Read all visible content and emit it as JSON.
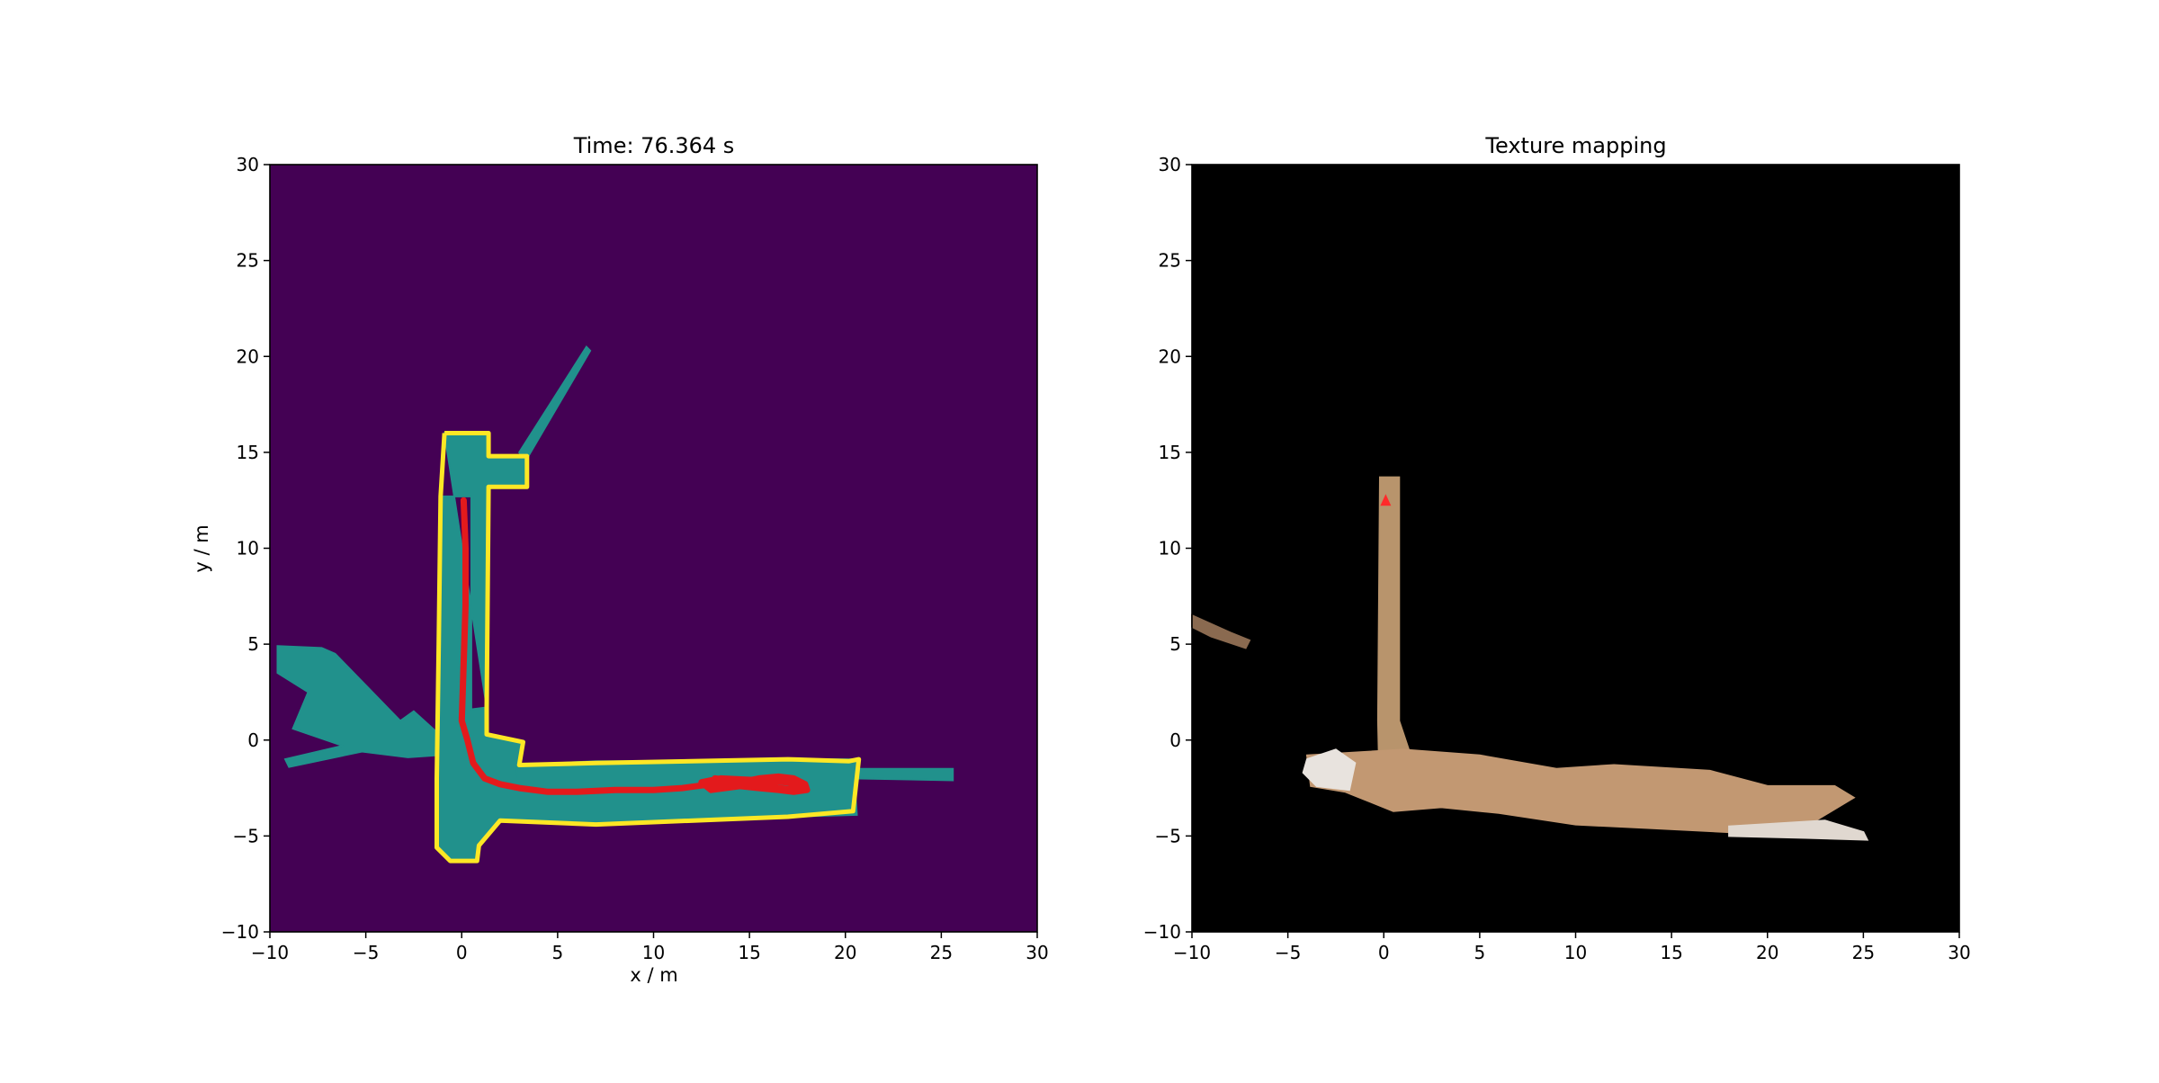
{
  "chart_data": [
    {
      "type": "heatmap",
      "title": "Time: 76.364 s",
      "xlabel": "x / m",
      "ylabel": "y / m",
      "xlim": [
        -10,
        30
      ],
      "ylim": [
        -10,
        30
      ],
      "x_ticks": [
        -10,
        -5,
        0,
        5,
        10,
        15,
        20,
        25,
        30
      ],
      "y_ticks": [
        -10,
        -5,
        0,
        5,
        10,
        15,
        20,
        25,
        30
      ],
      "grid": false,
      "colors": {
        "unknown": "#440154",
        "free": "#21918c",
        "occupied": "#fde725",
        "trajectory": "#e31a1c"
      },
      "free_regions": [
        {
          "name": "vertical-corridor",
          "points": [
            [
              -0.9,
              16.0
            ],
            [
              1.4,
              16.0
            ],
            [
              1.4,
              14.8
            ],
            [
              3.4,
              14.8
            ],
            [
              3.4,
              13.2
            ],
            [
              1.4,
              13.2
            ],
            [
              1.3,
              1.7
            ],
            [
              0.5,
              1.6
            ],
            [
              0.5,
              12.7
            ],
            [
              -1.1,
              12.7
            ],
            [
              -1.2,
              5.0
            ],
            [
              -1.3,
              -2.0
            ],
            [
              -1.3,
              -5.6
            ],
            [
              -0.6,
              -6.3
            ],
            [
              0.8,
              -6.3
            ],
            [
              0.9,
              -5.5
            ],
            [
              2.0,
              -4.2
            ],
            [
              7.0,
              -4.4
            ],
            [
              17.0,
              -4.0
            ],
            [
              20.4,
              -3.7
            ],
            [
              20.7,
              -1.0
            ],
            [
              20.2,
              -1.1
            ],
            [
              17.0,
              -1.0
            ],
            [
              7.0,
              -1.2
            ],
            [
              3.0,
              -1.3
            ],
            [
              3.2,
              -0.1
            ],
            [
              1.3,
              0.3
            ],
            [
              1.3,
              1.7
            ]
          ]
        },
        {
          "name": "horizontal-corridor",
          "points": [
            [
              2.9,
              -1.3
            ],
            [
              7.0,
              -1.1
            ],
            [
              13.0,
              -1.1
            ],
            [
              17.0,
              -1.0
            ],
            [
              20.4,
              -1.0
            ],
            [
              20.6,
              -3.9
            ],
            [
              17.0,
              -4.0
            ],
            [
              7.0,
              -4.3
            ],
            [
              2.8,
              -4.2
            ],
            [
              2.8,
              -2.0
            ]
          ]
        },
        {
          "name": "left-fan",
          "points": [
            [
              -9.6,
              4.9
            ],
            [
              -7.3,
              4.8
            ],
            [
              -6.6,
              4.5
            ],
            [
              -3.2,
              1.0
            ],
            [
              -2.5,
              1.5
            ],
            [
              -1.4,
              0.5
            ],
            [
              -1.4,
              -0.8
            ],
            [
              -2.8,
              -0.9
            ],
            [
              -5.2,
              -0.6
            ],
            [
              -9.0,
              -1.4
            ],
            [
              -9.2,
              -1.0
            ],
            [
              -6.2,
              -0.3
            ],
            [
              -8.8,
              0.6
            ],
            [
              -8.0,
              2.5
            ],
            [
              -9.6,
              3.5
            ]
          ]
        },
        {
          "name": "right-ray",
          "points": [
            [
              20.5,
              -1.5
            ],
            [
              25.6,
              -1.5
            ],
            [
              25.6,
              -2.1
            ],
            [
              20.5,
              -2.0
            ]
          ]
        },
        {
          "name": "upper-ray",
          "points": [
            [
              3.0,
              15.0
            ],
            [
              6.5,
              20.5
            ],
            [
              6.7,
              20.3
            ],
            [
              3.3,
              14.5
            ]
          ]
        }
      ],
      "occupied_boundary": [
        [
          -0.9,
          16.0
        ],
        [
          1.4,
          16.0
        ],
        [
          1.4,
          14.8
        ],
        [
          3.4,
          14.8
        ],
        [
          3.4,
          13.2
        ],
        [
          1.4,
          13.2
        ],
        [
          1.3,
          1.7
        ],
        [
          1.3,
          0.3
        ],
        [
          3.2,
          -0.1
        ],
        [
          3.0,
          -1.3
        ],
        [
          7.0,
          -1.2
        ],
        [
          17.0,
          -1.0
        ],
        [
          20.2,
          -1.1
        ],
        [
          20.7,
          -1.0
        ],
        [
          20.4,
          -3.7
        ],
        [
          17.0,
          -4.0
        ],
        [
          7.0,
          -4.4
        ],
        [
          2.0,
          -4.2
        ],
        [
          0.9,
          -5.5
        ],
        [
          0.8,
          -6.3
        ],
        [
          -0.6,
          -6.3
        ],
        [
          -1.3,
          -5.6
        ],
        [
          -1.3,
          -2.0
        ],
        [
          -1.2,
          5.0
        ],
        [
          -1.1,
          12.7
        ],
        [
          -0.9,
          16.0
        ]
      ],
      "trajectory": {
        "x": [
          0.1,
          0.2,
          0.2,
          0.1,
          0.0,
          0.3,
          0.6,
          1.2,
          2.0,
          3.0,
          4.5,
          6.0,
          8.0,
          10.0,
          11.5,
          13.0,
          14.5,
          15.5,
          16.5,
          17.3,
          17.9,
          18.0,
          17.3,
          16.5,
          15.5,
          14.5,
          13.0,
          12.5,
          13.5,
          15.5,
          17.0,
          17.8,
          17.6,
          16.5,
          15.0,
          14.0,
          13.2
        ],
        "y": [
          12.5,
          10.0,
          7.0,
          4.0,
          1.0,
          0.0,
          -1.2,
          -2.0,
          -2.3,
          -2.5,
          -2.7,
          -2.7,
          -2.6,
          -2.6,
          -2.5,
          -2.3,
          -2.2,
          -2.0,
          -1.9,
          -2.0,
          -2.3,
          -2.6,
          -2.7,
          -2.6,
          -2.5,
          -2.4,
          -2.6,
          -2.2,
          -2.0,
          -2.1,
          -2.2,
          -2.4,
          -2.6,
          -2.5,
          -2.3,
          -2.1,
          -2.0
        ]
      }
    },
    {
      "type": "heatmap",
      "title": "Texture mapping",
      "xlabel": "",
      "ylabel": "",
      "xlim": [
        -10,
        30
      ],
      "ylim": [
        -10,
        30
      ],
      "x_ticks": [
        -10,
        -5,
        0,
        5,
        10,
        15,
        20,
        25,
        30
      ],
      "y_ticks": [
        -10,
        -5,
        0,
        5,
        10,
        15,
        20,
        25,
        30
      ],
      "grid": false,
      "colors": {
        "background": "#000000",
        "texture": "#c49a72",
        "marker": "#ff2a2a"
      },
      "texture_regions": [
        {
          "name": "vertical-strip",
          "color": "#b8946c",
          "points": [
            [
              -0.2,
              13.7
            ],
            [
              0.8,
              13.7
            ],
            [
              0.8,
              1.0
            ],
            [
              1.3,
              -0.5
            ],
            [
              1.2,
              -3.4
            ],
            [
              -0.2,
              -3.4
            ],
            [
              -0.3,
              1.0
            ]
          ]
        },
        {
          "name": "horizontal-strip",
          "color": "#c29872",
          "points": [
            [
              -4.0,
              -0.8
            ],
            [
              1.0,
              -0.5
            ],
            [
              5.0,
              -0.8
            ],
            [
              9.0,
              -1.5
            ],
            [
              12.0,
              -1.3
            ],
            [
              17.0,
              -1.6
            ],
            [
              20.0,
              -2.4
            ],
            [
              23.5,
              -2.4
            ],
            [
              24.5,
              -3.0
            ],
            [
              22.0,
              -4.5
            ],
            [
              18.0,
              -4.8
            ],
            [
              14.0,
              -4.6
            ],
            [
              10.0,
              -4.4
            ],
            [
              6.0,
              -3.8
            ],
            [
              3.0,
              -3.5
            ],
            [
              0.5,
              -3.7
            ],
            [
              -2.0,
              -2.7
            ],
            [
              -3.8,
              -2.4
            ]
          ]
        },
        {
          "name": "left-white-patch",
          "color": "#e8e3de",
          "points": [
            [
              -4.0,
              -1.0
            ],
            [
              -2.5,
              -0.5
            ],
            [
              -1.5,
              -1.2
            ],
            [
              -1.8,
              -2.6
            ],
            [
              -3.5,
              -2.4
            ],
            [
              -4.2,
              -1.7
            ]
          ]
        },
        {
          "name": "far-left-specks",
          "color": "#8a6a50",
          "points": [
            [
              -10.0,
              6.5
            ],
            [
              -8.0,
              5.6
            ],
            [
              -7.0,
              5.2
            ],
            [
              -7.2,
              4.8
            ],
            [
              -9.0,
              5.4
            ],
            [
              -10.0,
              5.9
            ]
          ]
        },
        {
          "name": "right-specks",
          "color": "#e0d8d0",
          "points": [
            [
              18.0,
              -4.5
            ],
            [
              23.0,
              -4.2
            ],
            [
              25.0,
              -4.8
            ],
            [
              25.2,
              -5.2
            ],
            [
              22.0,
              -5.1
            ],
            [
              18.0,
              -5.0
            ]
          ]
        }
      ],
      "marker": {
        "x": 0.1,
        "y": 12.5
      }
    }
  ]
}
